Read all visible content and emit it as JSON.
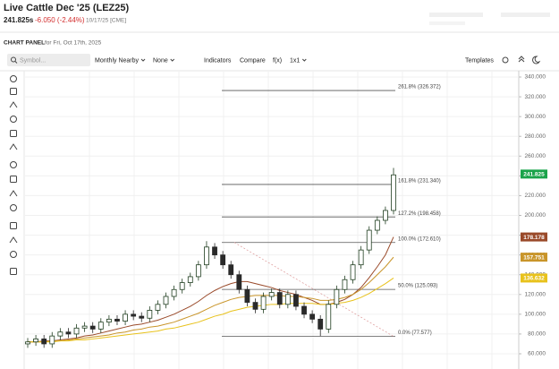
{
  "header": {
    "title": "Live Cattle Dec '25 (LEZ25)",
    "price": "241.825s",
    "change": "-6.050 (-2.44%)",
    "date": "10/17/25 [CME]"
  },
  "panel": {
    "label": "CHART PANEL",
    "date": "for Fri, Oct 17th, 2025"
  },
  "toolbar": {
    "search": "Symbol...",
    "items": [
      "Monthly Nearby",
      "None",
      "Indicators",
      "Compare",
      "f(x)",
      "1x1"
    ],
    "templates": "Templates"
  },
  "chart_data": {
    "type": "candlestick",
    "ylim": [
      57,
      345
    ],
    "yticks": [
      {
        "value": 340,
        "label": "340.000"
      },
      {
        "value": 320,
        "label": "320.000"
      },
      {
        "value": 300,
        "label": "300.000"
      },
      {
        "value": 280,
        "label": "280.000"
      },
      {
        "value": 260,
        "label": "260.000"
      },
      {
        "value": 240,
        "label": "240.000"
      },
      {
        "value": 220,
        "label": "220.000"
      },
      {
        "value": 200,
        "label": "200.000"
      },
      {
        "value": 180,
        "label": "180.000"
      },
      {
        "value": 160,
        "label": "160.000"
      },
      {
        "value": 140,
        "label": "140.000"
      },
      {
        "value": 120,
        "label": "120.000"
      },
      {
        "value": 100,
        "label": "100.000"
      },
      {
        "value": 80,
        "label": "80.000"
      },
      {
        "value": 60,
        "label": "60.000"
      }
    ],
    "grid": true,
    "up_color": "#1f3d1f",
    "down_color": "#2a2a2a",
    "open": [
      70,
      72,
      75,
      70,
      78,
      82,
      80,
      86,
      88,
      85,
      92,
      95,
      93,
      100,
      98,
      96,
      104,
      110,
      118,
      125,
      132,
      138,
      150,
      168,
      160,
      150,
      140,
      125,
      112,
      105,
      118,
      122,
      110,
      120,
      108,
      100,
      95,
      85,
      110,
      125,
      135,
      150,
      165,
      185,
      195,
      205
    ],
    "high": [
      76,
      79,
      79,
      82,
      86,
      86,
      90,
      92,
      92,
      96,
      99,
      99,
      104,
      104,
      102,
      108,
      114,
      122,
      129,
      136,
      142,
      154,
      174,
      172,
      164,
      154,
      144,
      129,
      116,
      122,
      126,
      126,
      124,
      124,
      112,
      104,
      99,
      114,
      129,
      139,
      154,
      169,
      189,
      199,
      209,
      248
    ],
    "low": [
      66,
      68,
      66,
      66,
      74,
      76,
      76,
      82,
      81,
      81,
      88,
      89,
      89,
      94,
      92,
      92,
      100,
      106,
      114,
      121,
      128,
      134,
      146,
      156,
      146,
      136,
      121,
      108,
      101,
      101,
      114,
      106,
      106,
      104,
      96,
      91,
      78,
      81,
      106,
      121,
      131,
      146,
      161,
      181,
      191,
      201
    ],
    "close": [
      72,
      75,
      70,
      78,
      82,
      80,
      86,
      88,
      85,
      92,
      95,
      93,
      100,
      98,
      96,
      104,
      110,
      118,
      125,
      132,
      138,
      150,
      168,
      160,
      150,
      140,
      125,
      112,
      105,
      118,
      122,
      110,
      120,
      108,
      100,
      95,
      85,
      110,
      125,
      135,
      150,
      165,
      185,
      195,
      205,
      241
    ],
    "last_price": 241.825,
    "last_color": "#1aa34a",
    "series": [
      {
        "color": "#9a4a2a",
        "values": [
          72,
          72,
          73,
          73,
          74,
          75,
          76,
          78,
          79,
          81,
          83,
          85,
          87,
          89,
          90,
          92,
          94,
          97,
          100,
          104,
          108,
          113,
          119,
          124,
          128,
          131,
          133,
          133,
          131,
          129,
          127,
          124,
          122,
          120,
          117,
          114,
          110,
          110,
          112,
          115,
          120,
          127,
          137,
          148,
          160,
          178.178
        ]
      },
      {
        "color": "#c9952a",
        "values": [
          72,
          72,
          72,
          73,
          73,
          74,
          75,
          76,
          77,
          78,
          79,
          81,
          82,
          84,
          85,
          87,
          88,
          90,
          92,
          95,
          98,
          101,
          105,
          109,
          112,
          115,
          117,
          118,
          119,
          119,
          119,
          119,
          118,
          118,
          117,
          116,
          114,
          114,
          115,
          117,
          120,
          125,
          132,
          140,
          148,
          157.751
        ]
      },
      {
        "color": "#e8c21c",
        "values": [
          72,
          72,
          72,
          72,
          73,
          73,
          74,
          74,
          75,
          76,
          77,
          78,
          79,
          80,
          81,
          82,
          83,
          85,
          86,
          88,
          90,
          92,
          95,
          98,
          100,
          103,
          105,
          107,
          108,
          109,
          110,
          110,
          111,
          111,
          111,
          111,
          110,
          110,
          111,
          112,
          114,
          117,
          121,
          126,
          131,
          136.632
        ]
      }
    ],
    "fib_levels": [
      {
        "value": 326.372,
        "label": "261.8% (326.372)"
      },
      {
        "value": 231.34,
        "label": "161.8% (231.340)"
      },
      {
        "value": 198.458,
        "label": "127.2% (198.458)"
      },
      {
        "value": 172.61,
        "label": "100.0% (172.610)"
      },
      {
        "value": 125.093,
        "label": "50.0% (125.093)"
      },
      {
        "value": 77.577,
        "label": "0.0% (77.577)"
      }
    ]
  }
}
